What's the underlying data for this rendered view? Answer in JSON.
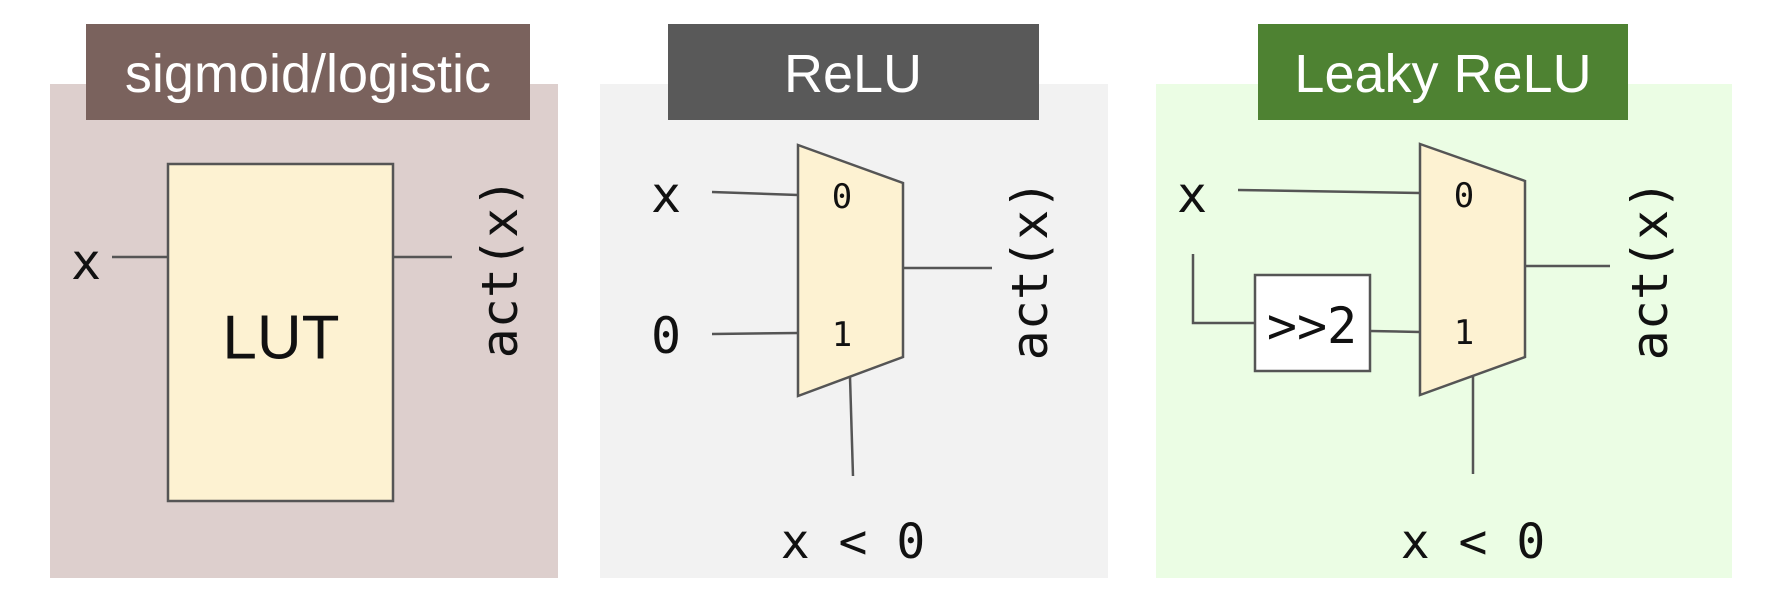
{
  "colors": {
    "panel_sigmoid_bg": "#ddcfcd",
    "panel_sigmoid_title": "#7a625d",
    "panel_relu_bg": "#f2f2f2",
    "panel_relu_title": "#595959",
    "panel_leaky_bg": "#ebfde4",
    "panel_leaky_title": "#4e8232",
    "block_fill": "#fdf2d2",
    "wire": "#555555"
  },
  "panels": {
    "sigmoid": {
      "title": "sigmoid/logistic",
      "input": "x",
      "block_label": "LUT",
      "output": "act(x)"
    },
    "relu": {
      "title": "ReLU",
      "input_top": "x",
      "input_bottom": "0",
      "mux_in0": "0",
      "mux_in1": "1",
      "output": "act(x)",
      "select": "x < 0"
    },
    "leaky": {
      "title": "Leaky ReLU",
      "input": "x",
      "shift_label": ">>2",
      "mux_in0": "0",
      "mux_in1": "1",
      "output": "act(x)",
      "select": "x < 0"
    }
  }
}
